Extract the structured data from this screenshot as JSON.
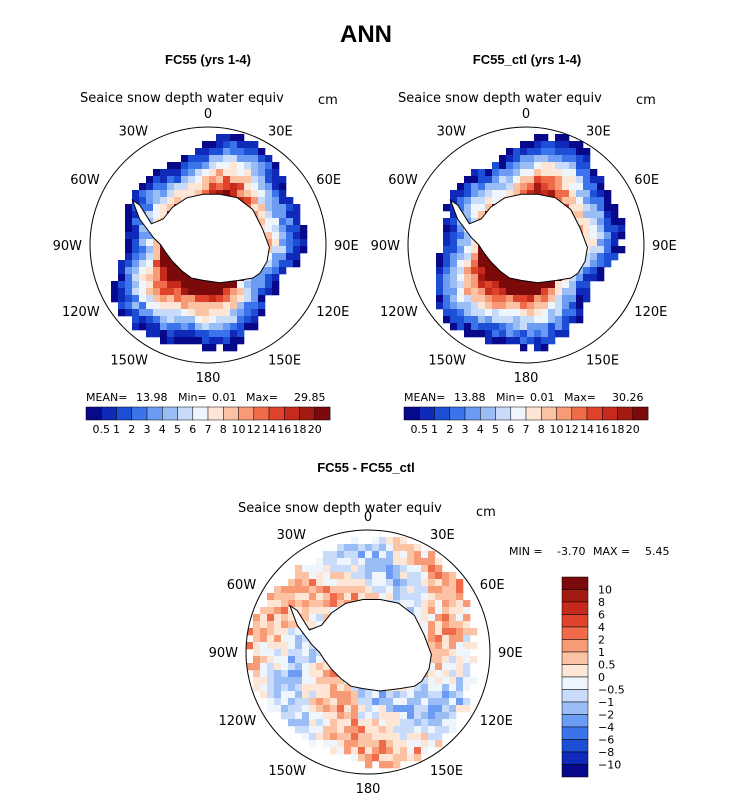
{
  "page_title": "ANN",
  "chart_data": [
    {
      "type": "heatmap",
      "projection": "south-polar-stereographic",
      "title": "FC55 (yrs 1-4)",
      "variable": "Seaice snow depth water equiv",
      "units": "cm",
      "lon_labels": [
        "0",
        "30E",
        "60E",
        "90E",
        "120E",
        "150E",
        "180",
        "150W",
        "120W",
        "90W",
        "60W",
        "30W"
      ],
      "stats": {
        "mean_label": "MEAN=",
        "mean": "13.98",
        "min_label": "Min=",
        "min": "0.01",
        "max_label": "Max=",
        "max": "29.85"
      },
      "contour_levels": [
        "0.5",
        "1",
        "2",
        "3",
        "4",
        "5",
        "6",
        "7",
        "8",
        "10",
        "12",
        "14",
        "16",
        "18",
        "20"
      ],
      "colors": [
        "#08088a",
        "#0f29b8",
        "#1c4fd6",
        "#3b74ea",
        "#6b9bf2",
        "#9bbdf6",
        "#c8dbfa",
        "#eef5fd",
        "#fde6d6",
        "#fbc2a4",
        "#f79a76",
        "#ef6b4a",
        "#e0432c",
        "#c52a1c",
        "#a31a12",
        "#7b0a0a"
      ]
    },
    {
      "type": "heatmap",
      "projection": "south-polar-stereographic",
      "title": "FC55_ctl (yrs 1-4)",
      "variable": "Seaice snow depth water equiv",
      "units": "cm",
      "lon_labels": [
        "0",
        "30E",
        "60E",
        "90E",
        "120E",
        "150E",
        "180",
        "150W",
        "120W",
        "90W",
        "60W",
        "30W"
      ],
      "stats": {
        "mean_label": "MEAN=",
        "mean": "13.88",
        "min_label": "Min=",
        "min": "0.01",
        "max_label": "Max=",
        "max": "30.26"
      },
      "contour_levels": [
        "0.5",
        "1",
        "2",
        "3",
        "4",
        "5",
        "6",
        "7",
        "8",
        "10",
        "12",
        "14",
        "16",
        "18",
        "20"
      ],
      "colors": [
        "#08088a",
        "#0f29b8",
        "#1c4fd6",
        "#3b74ea",
        "#6b9bf2",
        "#9bbdf6",
        "#c8dbfa",
        "#eef5fd",
        "#fde6d6",
        "#fbc2a4",
        "#f79a76",
        "#ef6b4a",
        "#e0432c",
        "#c52a1c",
        "#a31a12",
        "#7b0a0a"
      ]
    },
    {
      "type": "heatmap",
      "projection": "south-polar-stereographic",
      "title": "FC55 - FC55_ctl",
      "variable": "Seaice snow depth water equiv",
      "units": "cm",
      "lon_labels": [
        "0",
        "30E",
        "60E",
        "90E",
        "120E",
        "150E",
        "180",
        "150W",
        "120W",
        "90W",
        "60W",
        "30W"
      ],
      "stats": {
        "min_label": "MIN =",
        "min": "-3.70",
        "max_label": "MAX =",
        "max": "5.45"
      },
      "contour_levels": [
        "10",
        "8",
        "6",
        "4",
        "2",
        "1",
        "0.5",
        "0",
        "−0.5",
        "−1",
        "−2",
        "−4",
        "−6",
        "−8",
        "−10"
      ],
      "colors": [
        "#7b0a0a",
        "#a31a12",
        "#c52a1c",
        "#e0432c",
        "#ef6b4a",
        "#f79a76",
        "#fbc2a4",
        "#fde6d6",
        "#eef5fd",
        "#c8dbfa",
        "#9bbdf6",
        "#6b9bf2",
        "#3b74ea",
        "#1c4fd6",
        "#0f29b8",
        "#08088a"
      ]
    }
  ]
}
